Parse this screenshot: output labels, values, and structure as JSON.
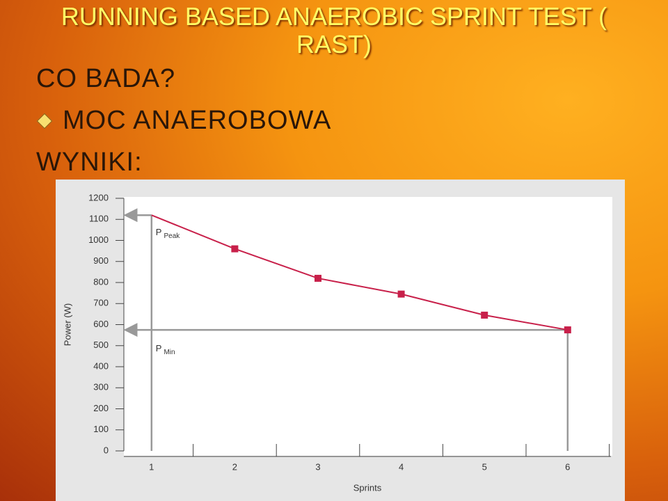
{
  "slide": {
    "title": "RUNNING BASED ANAEROBIC SPRINT TEST ( RAST)",
    "question": "CO BADA?",
    "bullet": "MOC ANAEROBOWA",
    "results": "WYNIKI:"
  },
  "chart_data": {
    "type": "line",
    "x_label": "Sprints",
    "y_label": "Power (W)",
    "categories": [
      "1",
      "2",
      "3",
      "4",
      "5",
      "6"
    ],
    "series": [
      {
        "color": "#c8204a",
        "values": [
          1120,
          960,
          820,
          745,
          645,
          575
        ]
      }
    ],
    "ylim": [
      0,
      1200
    ],
    "yticks": [
      0,
      100,
      200,
      300,
      400,
      500,
      600,
      700,
      800,
      900,
      1000,
      1100,
      1200
    ],
    "annotations": [
      {
        "text": "P",
        "sub": "Peak"
      },
      {
        "text": "P",
        "sub": "Min"
      }
    ]
  }
}
